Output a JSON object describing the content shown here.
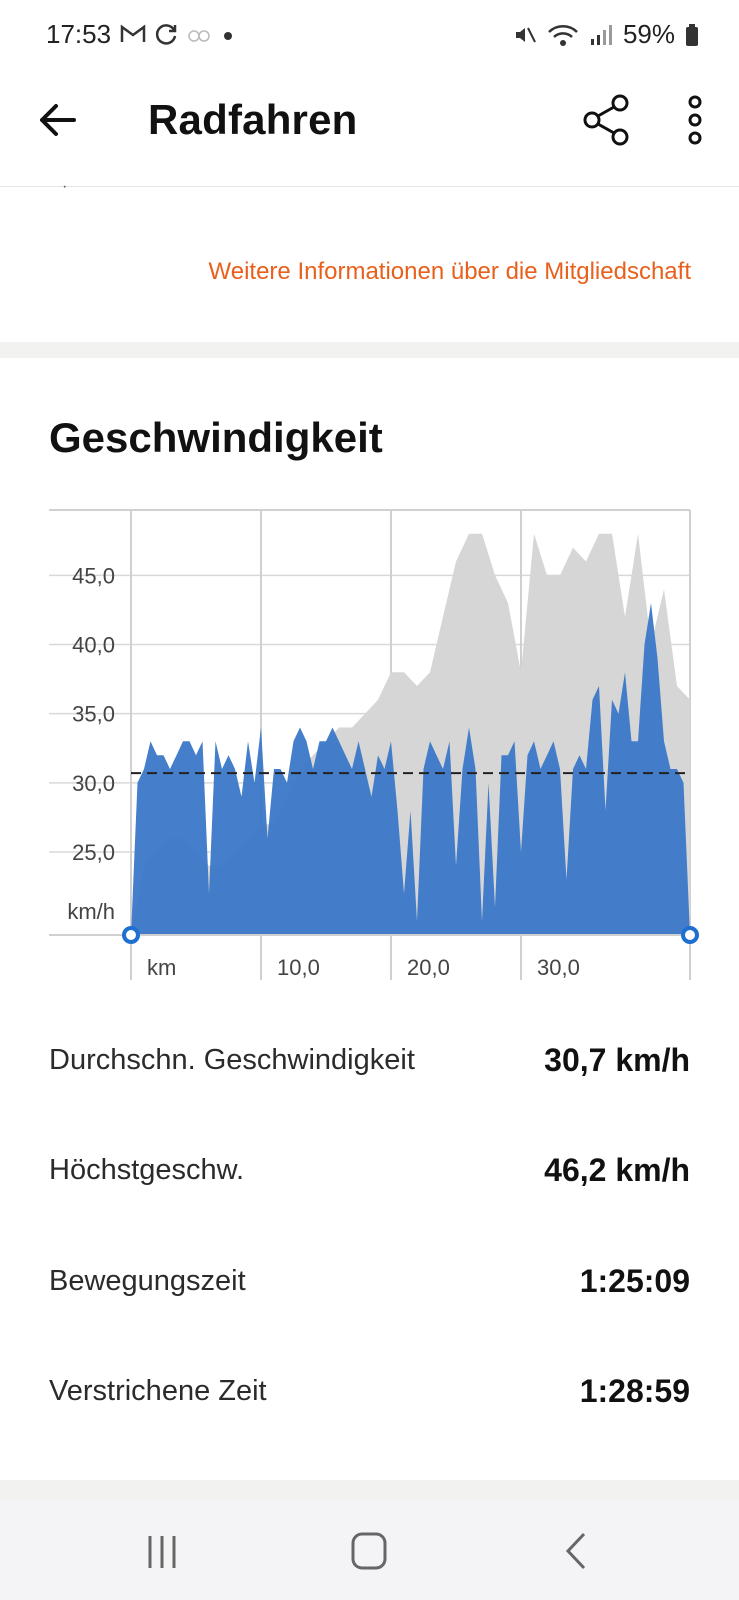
{
  "status": {
    "time": "17:53",
    "battery": "59%"
  },
  "header": {
    "title": "Radfahren"
  },
  "membership_link": "Weitere Informationen über die Mitgliedschaft",
  "section": {
    "title": "Geschwindigkeit"
  },
  "chart_data": {
    "type": "area",
    "ylabel": "km/h",
    "xlabel": "km",
    "x_ticks": [
      "10,0",
      "20,0",
      "30,0"
    ],
    "y_ticks": [
      "25,0",
      "30,0",
      "35,0",
      "40,0",
      "45,0"
    ],
    "ylim": [
      19,
      49
    ],
    "xlim": [
      0,
      43
    ],
    "average_line": 30.7,
    "grid": true,
    "series": [
      {
        "role": "speed",
        "color": "#3b78c8",
        "x": [
          0,
          0.5,
          1,
          1.5,
          2,
          2.5,
          3,
          3.5,
          4,
          4.5,
          5,
          5.5,
          6,
          6.5,
          7,
          7.5,
          8,
          8.5,
          9,
          9.5,
          10,
          10.5,
          11,
          11.5,
          12,
          12.5,
          13,
          13.5,
          14,
          14.5,
          15,
          15.5,
          16,
          16.5,
          17,
          17.5,
          18,
          18.5,
          19,
          19.5,
          20,
          20.5,
          21,
          21.5,
          22,
          22.5,
          23,
          23.5,
          24,
          24.5,
          25,
          25.5,
          26,
          26.5,
          27,
          27.5,
          28,
          28.5,
          29,
          29.5,
          30,
          30.5,
          31,
          31.5,
          32,
          32.5,
          33,
          33.5,
          34,
          34.5,
          35,
          35.5,
          36,
          36.5,
          37,
          37.5,
          38,
          38.5,
          39,
          39.5,
          40,
          40.5,
          41,
          41.5,
          42,
          42.5,
          43
        ],
        "values": [
          19,
          30,
          31,
          33,
          32,
          32,
          31,
          32,
          33,
          33,
          32,
          33,
          22,
          33,
          31,
          32,
          31,
          29,
          33,
          30,
          34,
          26,
          31,
          31,
          30,
          33,
          34,
          33,
          31,
          33,
          33,
          34,
          33,
          32,
          31,
          33,
          31,
          29,
          32,
          31,
          33,
          28,
          22,
          28,
          20,
          31,
          33,
          32,
          31,
          33,
          24,
          31,
          34,
          31,
          20,
          30,
          21,
          32,
          32,
          33,
          25,
          32,
          33,
          31,
          32,
          33,
          31,
          23,
          31,
          32,
          31,
          36,
          37,
          28,
          36,
          35,
          38,
          33,
          33,
          40,
          43,
          39,
          33,
          31,
          31,
          30,
          19
        ]
      },
      {
        "role": "elevation",
        "color": "#d6d6d6",
        "x": [
          0,
          1,
          2,
          3,
          4,
          5,
          6,
          7,
          8,
          9,
          10,
          11,
          12,
          13,
          14,
          15,
          16,
          17,
          18,
          19,
          20,
          21,
          22,
          23,
          24,
          25,
          26,
          27,
          28,
          29,
          30,
          31,
          32,
          33,
          34,
          35,
          36,
          37,
          38,
          39,
          40,
          41,
          42,
          43
        ],
        "values": [
          19,
          24,
          25,
          26,
          26,
          25,
          24,
          24,
          25,
          26,
          27,
          27,
          29,
          31,
          32,
          33,
          34,
          34,
          35,
          36,
          38,
          38,
          37,
          38,
          42,
          46,
          48,
          48,
          45,
          43,
          38,
          48,
          45,
          45,
          47,
          46,
          48,
          48,
          42,
          48,
          40,
          44,
          37,
          36
        ]
      }
    ]
  },
  "stats": [
    {
      "label": "Durchschn. Geschwindigkeit",
      "value": "30,7 km/h"
    },
    {
      "label": "Höchstgeschw.",
      "value": "46,2 km/h"
    },
    {
      "label": "Bewegungszeit",
      "value": "1:25:09"
    },
    {
      "label": "Verstrichene Zeit",
      "value": "1:28:59"
    }
  ]
}
